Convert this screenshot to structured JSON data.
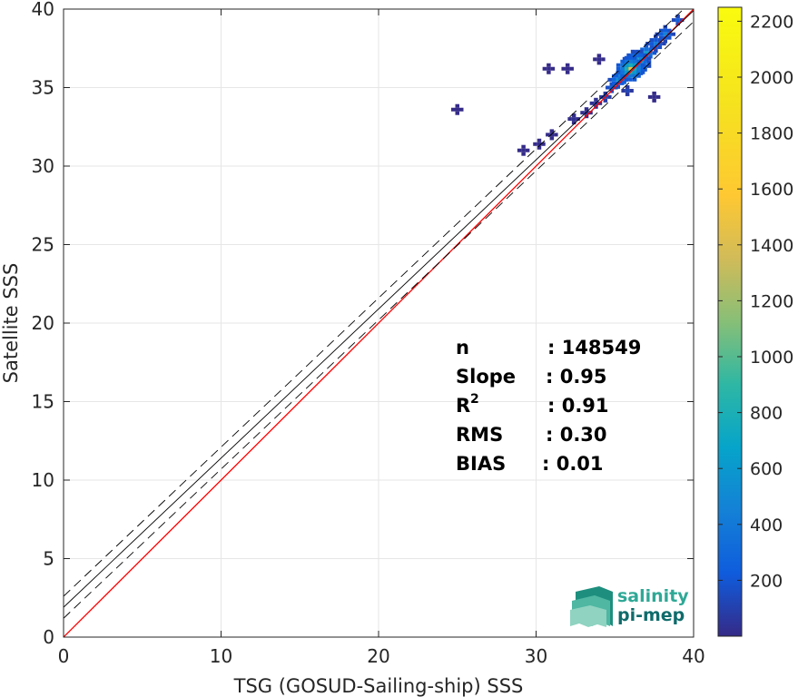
{
  "chart_data": {
    "type": "heatmap",
    "title": "",
    "xlabel": "TSG (GOSUD-Sailing-ship) SSS",
    "ylabel": "Satellite SSS",
    "xlim": [
      0,
      40
    ],
    "ylim": [
      0,
      40
    ],
    "xticks": [
      0,
      10,
      20,
      30,
      40
    ],
    "yticks": [
      0,
      5,
      10,
      15,
      20,
      25,
      30,
      35,
      40
    ],
    "grid": true,
    "density_points": [
      {
        "x": 36.0,
        "y": 36.2,
        "count": 1500
      },
      {
        "x": 36.4,
        "y": 36.6,
        "count": 1100
      },
      {
        "x": 35.6,
        "y": 35.8,
        "count": 900
      },
      {
        "x": 37.0,
        "y": 37.2,
        "count": 700
      },
      {
        "x": 35.2,
        "y": 35.5,
        "count": 550
      },
      {
        "x": 38.2,
        "y": 38.4,
        "count": 450
      },
      {
        "x": 37.6,
        "y": 37.8,
        "count": 400
      },
      {
        "x": 34.8,
        "y": 35.0,
        "count": 300
      },
      {
        "x": 39.0,
        "y": 39.3,
        "count": 250
      },
      {
        "x": 34.4,
        "y": 34.4,
        "count": 150
      },
      {
        "x": 36.2,
        "y": 37.0,
        "count": 200
      },
      {
        "x": 35.8,
        "y": 34.8,
        "count": 120
      },
      {
        "x": 33.8,
        "y": 34.0,
        "count": 60
      },
      {
        "x": 33.2,
        "y": 33.4,
        "count": 40
      },
      {
        "x": 32.4,
        "y": 33.0,
        "count": 25
      },
      {
        "x": 31.0,
        "y": 32.0,
        "count": 15
      },
      {
        "x": 30.2,
        "y": 31.4,
        "count": 10
      },
      {
        "x": 29.2,
        "y": 31.0,
        "count": 8
      },
      {
        "x": 30.8,
        "y": 36.2,
        "count": 5
      },
      {
        "x": 32.0,
        "y": 36.2,
        "count": 5
      },
      {
        "x": 25.0,
        "y": 33.6,
        "count": 5
      },
      {
        "x": 37.5,
        "y": 34.4,
        "count": 8
      },
      {
        "x": 34.0,
        "y": 36.8,
        "count": 10
      }
    ],
    "series": [
      {
        "type": "identity",
        "color": "#ff0000",
        "points": [
          [
            0,
            0
          ],
          [
            40,
            40
          ]
        ]
      },
      {
        "type": "regression",
        "color": "#000000",
        "points": [
          [
            0,
            1.9
          ],
          [
            40,
            39.9
          ]
        ]
      },
      {
        "type": "upper-bound",
        "color": "#000000",
        "dashed": true,
        "points": [
          [
            0,
            2.6
          ],
          [
            40,
            40.6
          ]
        ]
      },
      {
        "type": "lower-bound",
        "color": "#000000",
        "dashed": true,
        "points": [
          [
            0,
            1.2
          ],
          [
            40,
            39.2
          ]
        ]
      }
    ],
    "colorbar": {
      "min": 0,
      "max": 2250,
      "ticks": [
        200,
        400,
        600,
        800,
        1000,
        1200,
        1400,
        1600,
        1800,
        2000,
        2200
      ],
      "colormap": "parula"
    },
    "stats": [
      {
        "label": "n",
        "value": ": 148549"
      },
      {
        "label": "Slope",
        "value": ": 0.95"
      },
      {
        "label": "R",
        "sup": "2",
        "value": ": 0.91"
      },
      {
        "label": "RMS",
        "value": ": 0.30"
      },
      {
        "label": "BIAS",
        "value": ": 0.01"
      }
    ]
  },
  "logo": {
    "line1": "salinity",
    "line2": "pi-mep"
  },
  "colors": {
    "identity_line": "#ff0000",
    "grid": "#e6e6e6",
    "logo_text": "#2fa896"
  }
}
